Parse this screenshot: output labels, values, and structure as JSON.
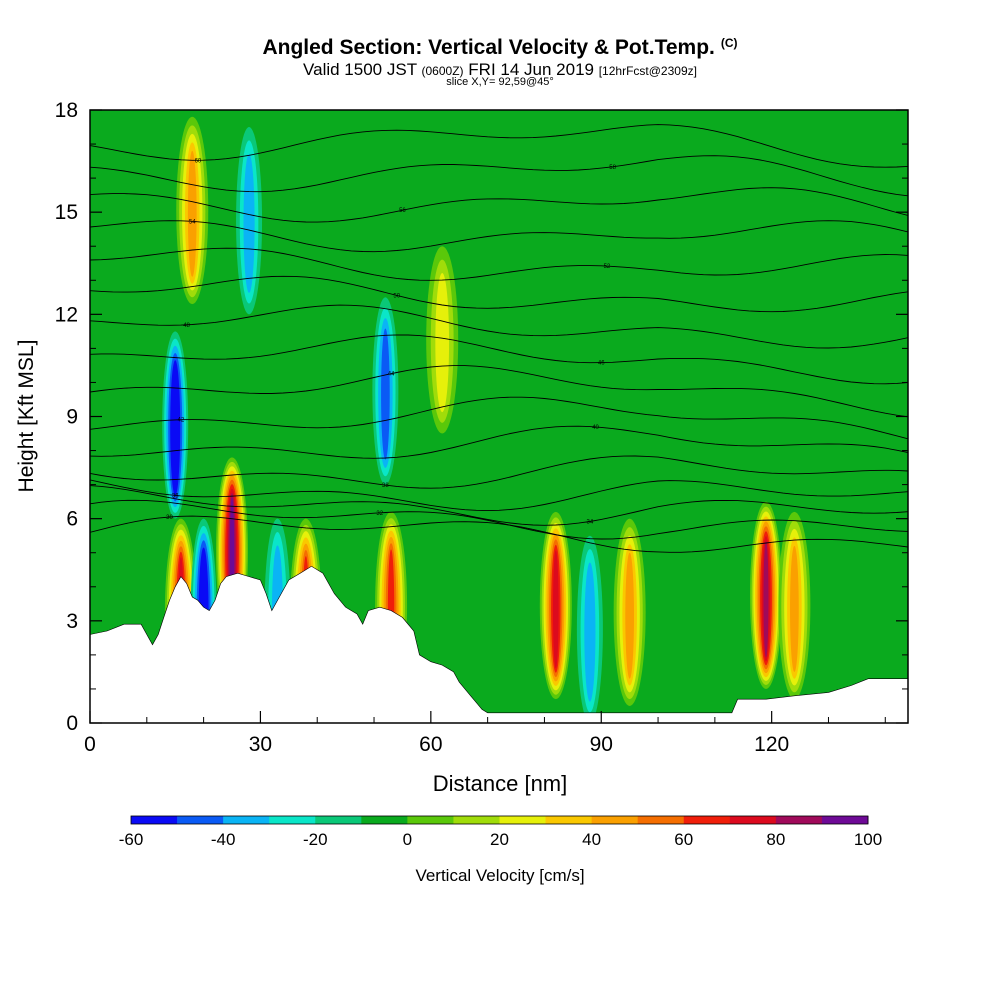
{
  "header": {
    "title": "Angled Section: Vertical Velocity & Pot.Temp.",
    "title_mark": "(C)",
    "valid_main": "Valid 1500 JST",
    "valid_utc": "(0600Z)",
    "valid_date": "FRI 14 Jun 2019",
    "forecast": "[12hrFcst@2309z]",
    "slice": "slice X,Y= 92,59@45°"
  },
  "chart_data": {
    "type": "heatmap",
    "xlabel": "Distance [nm]",
    "ylabel": "Height [Kft MSL]",
    "xlim": [
      0,
      144
    ],
    "ylim": [
      0,
      18
    ],
    "x_ticks": [
      "0",
      "30",
      "60",
      "90",
      "120"
    ],
    "y_ticks": [
      "0",
      "3",
      "6",
      "9",
      "12",
      "15",
      "18"
    ],
    "colorbar": {
      "label": "Vertical Velocity [cm/s]",
      "tick_labels": [
        "-60",
        "-40",
        "-20",
        "0",
        "20",
        "40",
        "60",
        "80",
        "100"
      ],
      "levels": [
        -60,
        -50,
        -40,
        -30,
        -20,
        -10,
        0,
        10,
        20,
        30,
        40,
        50,
        60,
        70,
        80,
        90,
        100
      ],
      "colors": [
        "#0a0af5",
        "#0a5af5",
        "#0ab4f5",
        "#0ae6c8",
        "#0ac878",
        "#0aaa1e",
        "#5ac80a",
        "#a0dc0a",
        "#e6f00a",
        "#fac800",
        "#faa000",
        "#f56e00",
        "#f01e0a",
        "#dc0a1e",
        "#a00a5a",
        "#6e0a96"
      ]
    },
    "background_level": 5,
    "updraft_columns": [
      {
        "x": 16,
        "ytop": 6.0,
        "peak": 70
      },
      {
        "x": 25,
        "ytop": 7.8,
        "peak": 90
      },
      {
        "x": 38,
        "ytop": 6.0,
        "peak": 60
      },
      {
        "x": 53,
        "ytop": 6.2,
        "peak": 60
      },
      {
        "x": 82,
        "ytop": 6.2,
        "peak": 70
      },
      {
        "x": 95,
        "ytop": 6.0,
        "peak": 40
      },
      {
        "x": 119,
        "ytop": 6.5,
        "peak": 80
      },
      {
        "x": 124,
        "ytop": 6.2,
        "peak": 40
      },
      {
        "x": 18,
        "ytop": 17.8,
        "peak": 40
      },
      {
        "x": 62,
        "ytop": 14.0,
        "peak": 20
      }
    ],
    "downdraft_columns": [
      {
        "x": 20,
        "ytop": 6.0,
        "peak": -50
      },
      {
        "x": 15,
        "ytop": 11.5,
        "peak": -50
      },
      {
        "x": 52,
        "ytop": 12.5,
        "peak": -30
      },
      {
        "x": 88,
        "ytop": 5.5,
        "peak": -20
      },
      {
        "x": 28,
        "ytop": 17.5,
        "peak": -20
      },
      {
        "x": 33,
        "ytop": 6.0,
        "peak": -20
      }
    ],
    "terrain_kft": [
      [
        0,
        2.6
      ],
      [
        3,
        2.7
      ],
      [
        6,
        2.9
      ],
      [
        9,
        2.9
      ],
      [
        10,
        2.6
      ],
      [
        11,
        2.3
      ],
      [
        12,
        2.6
      ],
      [
        13,
        3.1
      ],
      [
        14,
        3.6
      ],
      [
        15,
        4.0
      ],
      [
        16,
        4.3
      ],
      [
        17,
        4.1
      ],
      [
        18,
        3.7
      ],
      [
        19,
        3.6
      ],
      [
        20,
        3.4
      ],
      [
        21,
        3.3
      ],
      [
        22,
        3.6
      ],
      [
        23,
        4.1
      ],
      [
        24,
        4.3
      ],
      [
        26,
        4.4
      ],
      [
        28,
        4.3
      ],
      [
        30,
        4.2
      ],
      [
        31,
        3.8
      ],
      [
        32,
        3.3
      ],
      [
        33,
        3.6
      ],
      [
        35,
        4.2
      ],
      [
        37,
        4.4
      ],
      [
        39,
        4.6
      ],
      [
        41,
        4.4
      ],
      [
        43,
        3.8
      ],
      [
        45,
        3.4
      ],
      [
        47,
        3.2
      ],
      [
        48,
        2.9
      ],
      [
        49,
        3.3
      ],
      [
        51,
        3.4
      ],
      [
        53,
        3.3
      ],
      [
        55,
        3.1
      ],
      [
        57,
        2.7
      ],
      [
        58,
        2.0
      ],
      [
        60,
        1.8
      ],
      [
        62,
        1.7
      ],
      [
        64,
        1.5
      ],
      [
        65,
        1.2
      ],
      [
        66,
        1.0
      ],
      [
        67,
        0.8
      ],
      [
        68,
        0.6
      ],
      [
        69,
        0.4
      ],
      [
        70,
        0.3
      ],
      [
        90,
        0.3
      ],
      [
        113,
        0.3
      ],
      [
        114,
        0.7
      ],
      [
        119,
        0.7
      ],
      [
        124,
        0.8
      ],
      [
        130,
        0.9
      ],
      [
        134,
        1.1
      ],
      [
        137,
        1.3
      ],
      [
        144,
        1.3
      ]
    ],
    "theta_contours": [
      {
        "base": 5.6,
        "label": "30"
      },
      {
        "base": 6.0,
        "label": "32"
      },
      {
        "base": 6.4,
        "label": "34"
      },
      {
        "base": 6.8,
        "label": "36"
      },
      {
        "base": 7.4,
        "label": "38"
      },
      {
        "base": 8.2,
        "label": "40"
      },
      {
        "base": 9.0,
        "label": "42"
      },
      {
        "base": 9.9,
        "label": "44"
      },
      {
        "base": 10.8,
        "label": "46"
      },
      {
        "base": 11.7,
        "label": "48"
      },
      {
        "base": 12.6,
        "label": "50"
      },
      {
        "base": 13.5,
        "label": "52"
      },
      {
        "base": 14.4,
        "label": "54"
      },
      {
        "base": 15.3,
        "label": "56"
      },
      {
        "base": 16.2,
        "label": "58"
      },
      {
        "base": 17.1,
        "label": "60"
      }
    ]
  }
}
